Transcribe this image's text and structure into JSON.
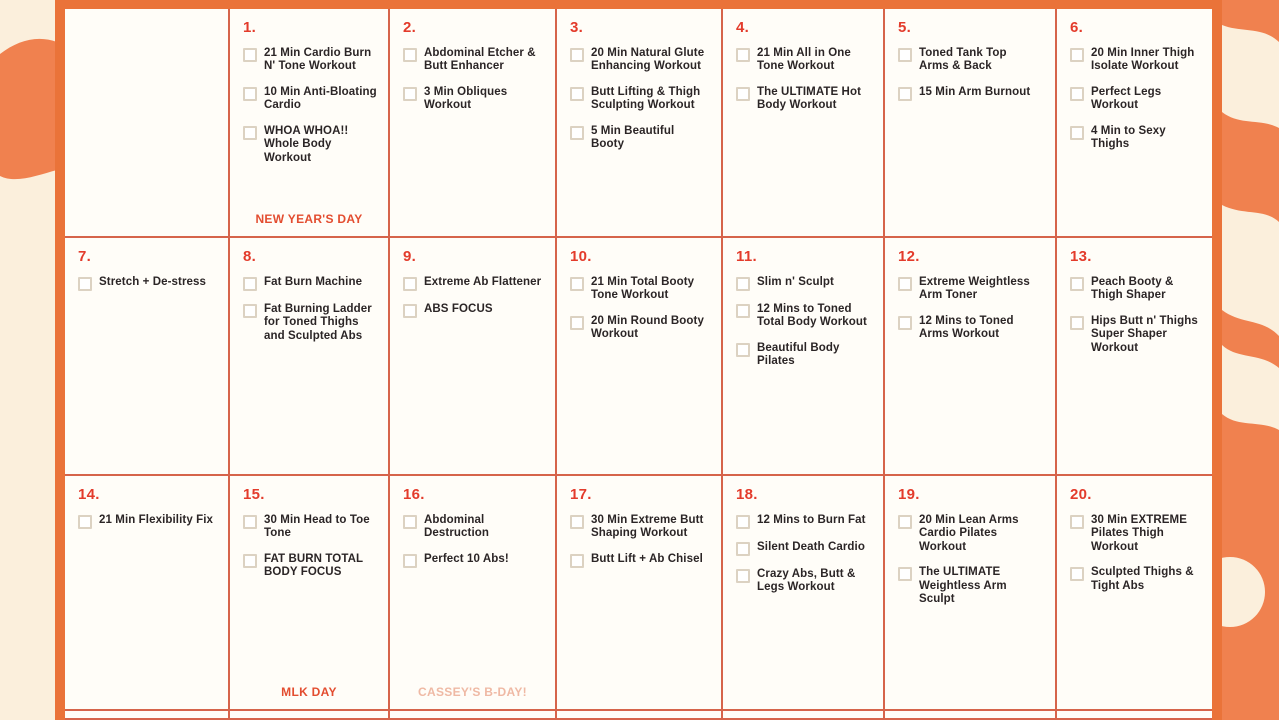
{
  "colors": {
    "cream": "#FBEFDC",
    "swirl_orange": "#F0814F",
    "border_orange": "#EA7339",
    "grid_line": "#D6644B",
    "cell_bg": "#FFFDF8",
    "day_red": "#E33B2B",
    "ink": "#2B2526",
    "checkbox": "#DCD2C2",
    "special_red": "#E34D30",
    "special_faded": "#EFB9A4"
  },
  "calendar": {
    "rows": [
      {
        "cells": [
          {
            "day": "",
            "items": [],
            "special": ""
          },
          {
            "day": "1.",
            "items": [
              "21 Min Cardio Burn N' Tone Workout",
              "10 Min Anti-Bloating Cardio",
              "WHOA WHOA!! Whole Body Workout"
            ],
            "special": "NEW YEAR'S DAY",
            "special_variant": "red"
          },
          {
            "day": "2.",
            "items": [
              "Abdominal Etcher & Butt Enhancer",
              "3 Min Obliques Workout"
            ],
            "special": ""
          },
          {
            "day": "3.",
            "items": [
              "20 Min Natural Glute Enhancing Workout",
              "Butt Lifting & Thigh Sculpting Workout",
              "5 Min Beautiful Booty"
            ],
            "special": ""
          },
          {
            "day": "4.",
            "items": [
              "21 Min All in One Tone Workout",
              "The ULTIMATE Hot Body Workout"
            ],
            "special": ""
          },
          {
            "day": "5.",
            "items": [
              "Toned Tank Top Arms & Back",
              "15 Min Arm Burnout"
            ],
            "special": ""
          },
          {
            "day": "6.",
            "items": [
              "20 Min Inner Thigh Isolate Workout",
              "Perfect Legs Workout",
              "4 Min to Sexy Thighs"
            ],
            "special": ""
          }
        ]
      },
      {
        "cells": [
          {
            "day": "7.",
            "items": [
              "Stretch + De-stress"
            ],
            "special": ""
          },
          {
            "day": "8.",
            "items": [
              "Fat Burn Machine",
              "Fat Burning Ladder for Toned Thighs and Sculpted Abs"
            ],
            "special": ""
          },
          {
            "day": "9.",
            "items": [
              "Extreme Ab Flattener",
              "ABS FOCUS"
            ],
            "special": ""
          },
          {
            "day": "10.",
            "items": [
              "21 Min Total Booty Tone Workout",
              "20 Min Round Booty Workout"
            ],
            "special": ""
          },
          {
            "day": "11.",
            "items": [
              "Slim n' Sculpt",
              "12 Mins to Toned Total Body Workout",
              "Beautiful Body Pilates"
            ],
            "special": ""
          },
          {
            "day": "12.",
            "items": [
              "Extreme Weightless Arm Toner",
              "12 Mins to Toned Arms Workout"
            ],
            "special": ""
          },
          {
            "day": "13.",
            "items": [
              "Peach Booty & Thigh Shaper",
              "Hips Butt n' Thighs Super Shaper Workout"
            ],
            "special": ""
          }
        ]
      },
      {
        "cells": [
          {
            "day": "14.",
            "items": [
              "21 Min Flexibility Fix"
            ],
            "special": ""
          },
          {
            "day": "15.",
            "items": [
              "30 Min Head to Toe Tone",
              "FAT BURN TOTAL BODY FOCUS"
            ],
            "special": "MLK DAY",
            "special_variant": "red"
          },
          {
            "day": "16.",
            "items": [
              "Abdominal Destruction",
              "Perfect 10 Abs!"
            ],
            "special": "CASSEY'S B-DAY!",
            "special_variant": "faded"
          },
          {
            "day": "17.",
            "items": [
              "30 Min Extreme Butt Shaping Workout",
              "Butt Lift + Ab Chisel"
            ],
            "special": ""
          },
          {
            "day": "18.",
            "items": [
              "12 Mins to Burn Fat",
              "Silent Death Cardio",
              "Crazy Abs, Butt & Legs Workout"
            ],
            "special": ""
          },
          {
            "day": "19.",
            "items": [
              "20 Min Lean Arms Cardio Pilates Workout",
              "The ULTIMATE Weightless Arm Sculpt"
            ],
            "special": ""
          },
          {
            "day": "20.",
            "items": [
              "30 Min EXTREME Pilates Thigh Workout",
              "Sculpted Thighs & Tight Abs"
            ],
            "special": ""
          }
        ]
      },
      {
        "partial": true,
        "cells": [
          {
            "day": "",
            "items": [],
            "special": ""
          },
          {
            "day": "",
            "items": [],
            "special": ""
          },
          {
            "day": "",
            "items": [],
            "special": ""
          },
          {
            "day": "",
            "items": [],
            "special": ""
          },
          {
            "day": "",
            "items": [],
            "special": ""
          },
          {
            "day": "",
            "items": [],
            "special": ""
          },
          {
            "day": "",
            "items": [],
            "special": ""
          }
        ]
      }
    ]
  }
}
